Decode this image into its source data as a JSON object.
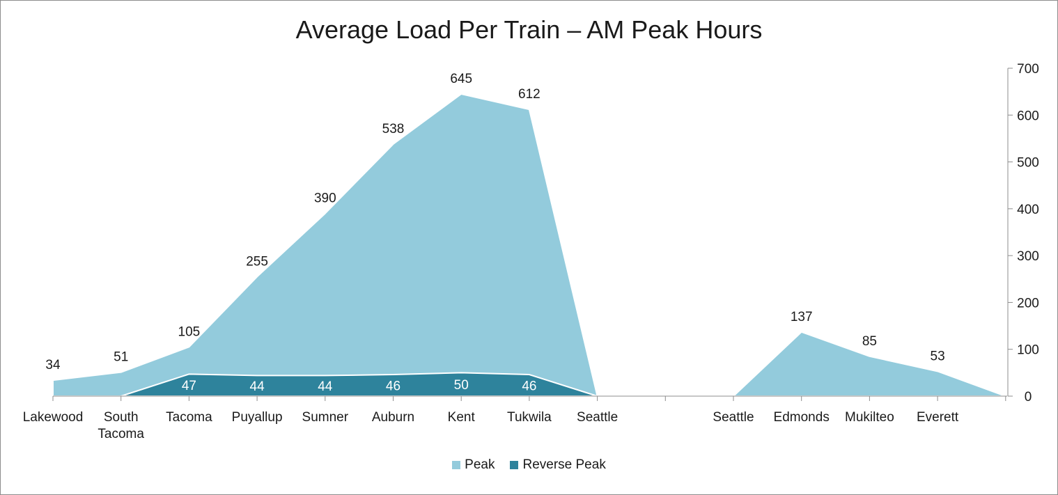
{
  "chart_data": {
    "type": "area",
    "title": "Average Load Per Train – AM Peak Hours",
    "categories": [
      [
        "Lakewood"
      ],
      [
        "South",
        "Tacoma"
      ],
      [
        "Tacoma"
      ],
      [
        "Puyallup"
      ],
      [
        "Sumner"
      ],
      [
        "Auburn"
      ],
      [
        "Kent"
      ],
      [
        "Tukwila"
      ],
      [
        "Seattle"
      ],
      [
        ""
      ],
      [
        "Seattle"
      ],
      [
        "Edmonds"
      ],
      [
        "Mukilteo"
      ],
      [
        "Everett"
      ],
      [
        ""
      ]
    ],
    "series": [
      {
        "name": "Peak",
        "color": "#93cbdc",
        "values": [
          34,
          51,
          105,
          255,
          390,
          538,
          645,
          612,
          0,
          null,
          0,
          137,
          85,
          53,
          0
        ],
        "labels": [
          "34",
          "51",
          "105",
          "255",
          "390",
          "538",
          "645",
          "612",
          null,
          null,
          null,
          "137",
          "85",
          "53",
          null
        ]
      },
      {
        "name": "Reverse Peak",
        "color": "#2e839c",
        "values": [
          null,
          0,
          47,
          44,
          44,
          46,
          50,
          46,
          0,
          null,
          null,
          null,
          null,
          null,
          null
        ],
        "labels": [
          null,
          null,
          "47",
          "44",
          "44",
          "46",
          "50",
          "46",
          null,
          null,
          null,
          null,
          null,
          null,
          null
        ]
      }
    ],
    "ylim": [
      0,
      700
    ],
    "yticks": [
      0,
      100,
      200,
      300,
      400,
      500,
      600,
      700
    ],
    "y_axis_side": "right",
    "grid": false,
    "legend": "bottom"
  }
}
